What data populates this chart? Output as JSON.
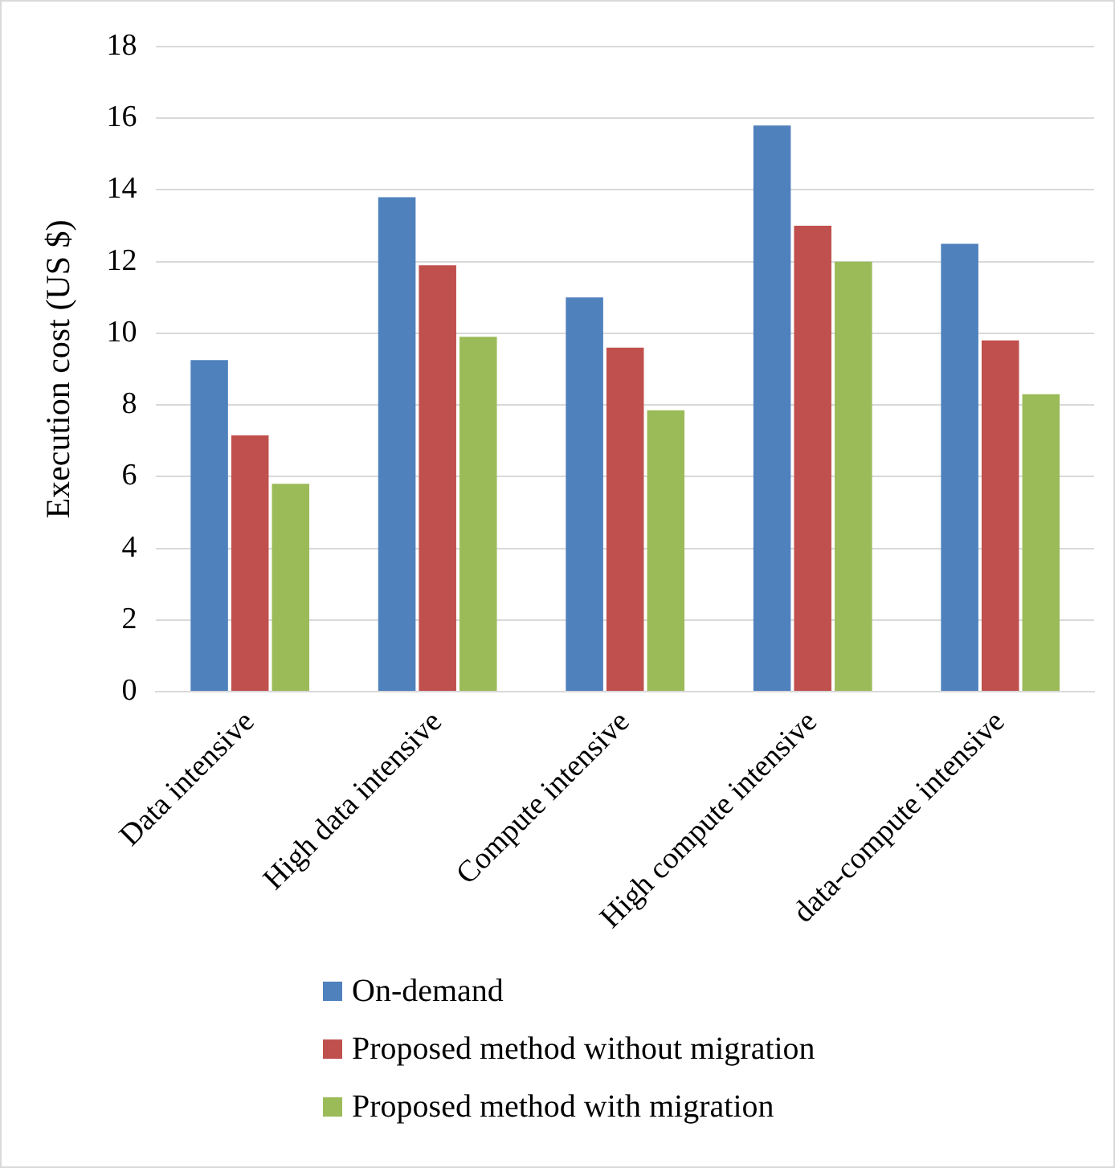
{
  "chart_data": {
    "type": "bar",
    "ylabel": "Execution cost (US $)",
    "categories": [
      "Data intensive",
      "High data intensive",
      "Compute intensive",
      "High compute intensive",
      "data-compute intensive"
    ],
    "series": [
      {
        "name": "On-demand",
        "color": "#4f81bd",
        "values": [
          9.25,
          13.8,
          11,
          15.8,
          12.5
        ]
      },
      {
        "name": "Proposed method without migration",
        "color": "#c0504d",
        "values": [
          7.15,
          11.9,
          9.6,
          13,
          9.8
        ]
      },
      {
        "name": "Proposed method with migration",
        "color": "#9bbb59",
        "values": [
          5.8,
          9.9,
          7.85,
          12,
          8.3
        ]
      }
    ],
    "ylim": [
      0,
      18
    ],
    "yticks": [
      0,
      2,
      4,
      6,
      8,
      10,
      12,
      14,
      16,
      18
    ],
    "grid": "y",
    "legend": "bottom"
  }
}
